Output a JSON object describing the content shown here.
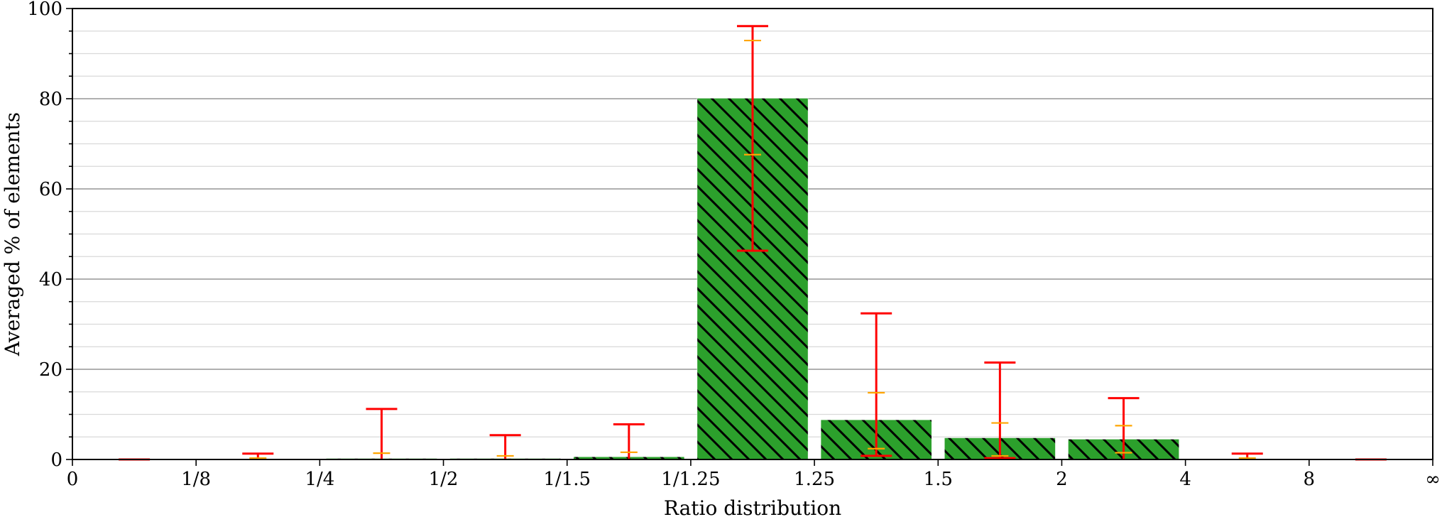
{
  "chart_data": {
    "type": "bar",
    "xlabel": "Ratio distribution",
    "ylabel": "Averaged % of elements",
    "ylim": [
      0,
      100
    ],
    "yticks": [
      0,
      20,
      40,
      60,
      80,
      100
    ],
    "minor_ystep": 5,
    "grid": true,
    "x_edge_labels": [
      "0",
      "1/8",
      "1/4",
      "1/2",
      "1/1.5",
      "1/1.25",
      "1.25",
      "1.5",
      "2",
      "4",
      "8",
      "∞"
    ],
    "bins": [
      {
        "value": 0.0,
        "err_low": 0.0,
        "err_high": 0.0,
        "p_low": 0.0,
        "p_high": 0.0
      },
      {
        "value": 0.0,
        "err_low": 0.0,
        "err_high": 1.3,
        "p_low": 0.0,
        "p_high": 0.3
      },
      {
        "value": 0.2,
        "err_low": 0.0,
        "err_high": 11.2,
        "p_low": 0.0,
        "p_high": 1.4
      },
      {
        "value": 0.2,
        "err_low": 0.0,
        "err_high": 5.4,
        "p_low": 0.0,
        "p_high": 0.8
      },
      {
        "value": 0.6,
        "err_low": 0.0,
        "err_high": 7.8,
        "p_low": 0.0,
        "p_high": 1.6
      },
      {
        "value": 80.1,
        "err_low": 46.3,
        "err_high": 96.1,
        "p_low": 67.6,
        "p_high": 92.9
      },
      {
        "value": 8.8,
        "err_low": 0.8,
        "err_high": 32.4,
        "p_low": 2.4,
        "p_high": 14.8
      },
      {
        "value": 4.8,
        "err_low": 0.3,
        "err_high": 21.5,
        "p_low": 0.8,
        "p_high": 8.1
      },
      {
        "value": 4.5,
        "err_low": 0.0,
        "err_high": 13.6,
        "p_low": 1.5,
        "p_high": 7.5
      },
      {
        "value": 0.0,
        "err_low": 0.0,
        "err_high": 1.3,
        "p_low": 0.0,
        "p_high": 0.3
      },
      {
        "value": 0.0,
        "err_low": 0.0,
        "err_high": 0.0,
        "p_low": 0.0,
        "p_high": 0.0
      }
    ],
    "colors": {
      "bar_fill": "#2ca02c",
      "hatch": "#000000",
      "error_bar": "#ff0000",
      "percentile_mark": "#ffa500",
      "grid_major": "#b0b0b0",
      "grid_minor": "#d9d9d9"
    }
  }
}
